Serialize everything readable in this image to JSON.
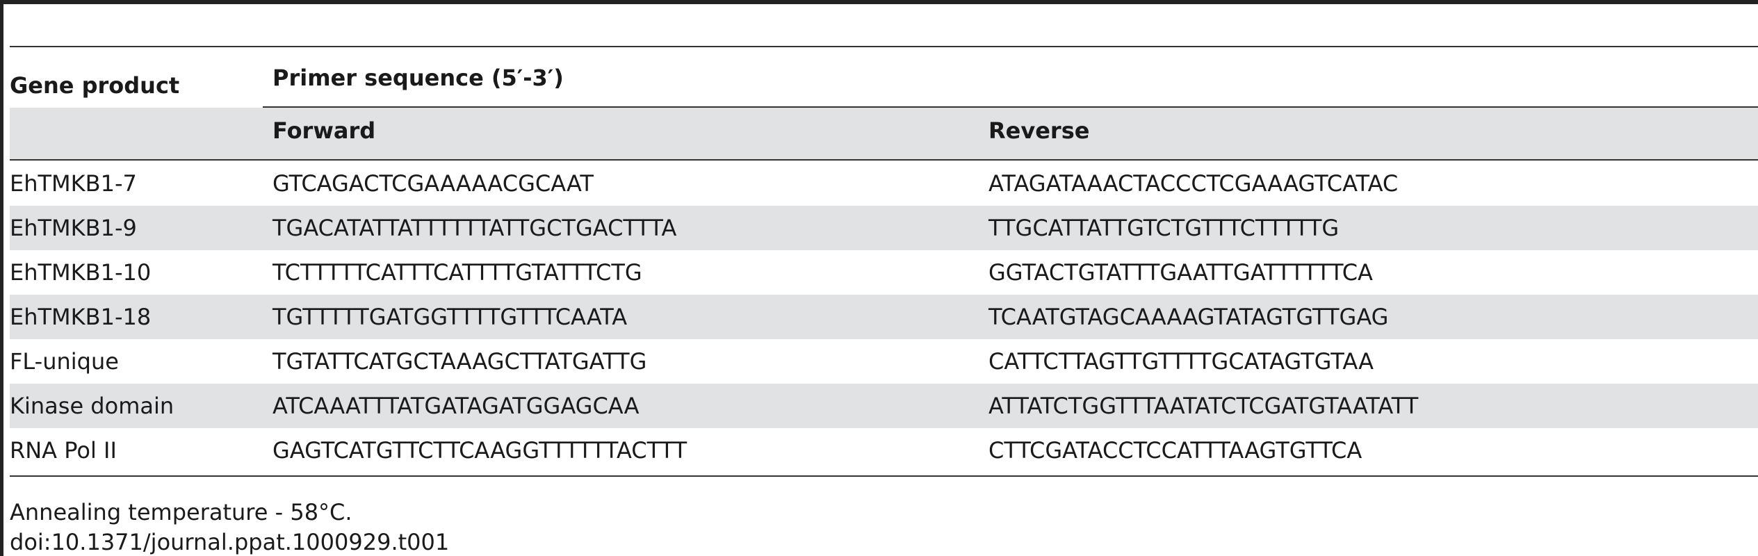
{
  "table": {
    "header": {
      "gene_product": "Gene product",
      "primer_sequence": "Primer sequence (5′-3′)",
      "forward": "Forward",
      "reverse": "Reverse"
    },
    "rows": [
      {
        "gene": "EhTMKB1-7",
        "forward": "GTCAGACTCGAAAAACGCAAT",
        "reverse": "ATAGATAAACTACCCTCGAAAGTCATAC"
      },
      {
        "gene": "EhTMKB1-9",
        "forward": "TGACATATTATTTTTTATTGCTGACTTTA",
        "reverse": "TTGCATTATTGTCTGTTTCTTTTTG"
      },
      {
        "gene": "EhTMKB1-10",
        "forward": "TCTTTTTCATTTCATTTTGTATTTCTG",
        "reverse": "GGTACTGTATTTGAATTGATTTTTTCA"
      },
      {
        "gene": "EhTMKB1-18",
        "forward": "TGTTTTTGATGGTTTTGTTTCAATA",
        "reverse": "TCAATGTAGCAAAAGTATAGTGTTGAG"
      },
      {
        "gene": "FL-unique",
        "forward": "TGTATTCATGCTAAAGCTTATGATTG",
        "reverse": "CATTCTTAGTTGTTTTGCATAGTGTAA"
      },
      {
        "gene": "Kinase domain",
        "forward": "ATCAAATTTATGATAGATGGAGCAA",
        "reverse": "ATTATCTGGTTTAATATCTCGATGTAATATT"
      },
      {
        "gene": "RNA Pol II",
        "forward": "GAGTCATGTTCTTCAAGGTTTTTTACTTT",
        "reverse": "CTTCGATACCTCCATTTAAGTGTTCA"
      }
    ],
    "footnote": "Annealing temperature - 58°C.",
    "doi": "doi:10.1371/journal.ppat.1000929.t001"
  }
}
